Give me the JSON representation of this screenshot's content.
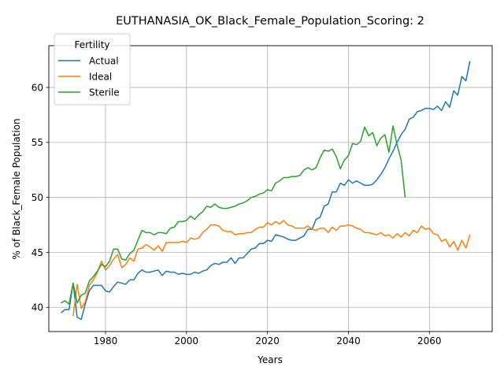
{
  "chart_data": {
    "type": "line",
    "title": "EUTHANASIA_OK_Black_Female_Population_Scoring: 2",
    "xlabel": "Years",
    "ylabel": "% of Black_Female Population",
    "xlim": [
      1966.0,
      2075.5
    ],
    "ylim": [
      37.8,
      63.8
    ],
    "x_ticks": [
      1980,
      2000,
      2020,
      2040,
      2060
    ],
    "y_ticks": [
      40,
      45,
      50,
      55,
      60
    ],
    "grid": true,
    "legend": {
      "title": "Fertility",
      "placement": "top-left"
    },
    "series": [
      {
        "name": "Actual",
        "color": "#1f77b4",
        "x": [
          1969,
          1970,
          1971,
          1972,
          1973,
          1974,
          1975,
          1976,
          1977,
          1978,
          1979,
          1980,
          1981,
          1982,
          1983,
          1984,
          1985,
          1986,
          1987,
          1988,
          1989,
          1990,
          1991,
          1992,
          1993,
          1994,
          1995,
          1996,
          1997,
          1998,
          1999,
          2000,
          2001,
          2002,
          2003,
          2004,
          2005,
          2006,
          2007,
          2008,
          2009,
          2010,
          2011,
          2012,
          2013,
          2014,
          2015,
          2016,
          2017,
          2018,
          2019,
          2020,
          2021,
          2022,
          2023,
          2024,
          2025,
          2026,
          2027,
          2028,
          2029,
          2030,
          2031,
          2032,
          2033,
          2034,
          2035,
          2036,
          2037,
          2038,
          2039,
          2040,
          2041,
          2042,
          2043,
          2044,
          2045,
          2046,
          2047,
          2048,
          2049,
          2050,
          2051,
          2052,
          2053,
          2054,
          2055,
          2056,
          2057,
          2058,
          2059,
          2060,
          2061,
          2062,
          2063,
          2064,
          2065,
          2066,
          2067,
          2068,
          2069,
          2070
        ],
        "y": [
          39.5,
          39.8,
          39.8,
          42.2,
          39.1,
          38.9,
          40.3,
          41.5,
          42.0,
          42.0,
          42.0,
          41.5,
          41.4,
          41.9,
          42.3,
          42.2,
          42.1,
          42.5,
          42.5,
          43.1,
          43.4,
          43.2,
          43.2,
          43.3,
          43.4,
          42.9,
          43.3,
          43.2,
          43.2,
          43.0,
          43.1,
          43.0,
          43.0,
          43.2,
          43.1,
          43.3,
          43.4,
          43.8,
          44.0,
          43.9,
          44.1,
          44.1,
          44.5,
          44.0,
          44.5,
          44.5,
          44.9,
          45.3,
          45.4,
          45.8,
          45.8,
          46.1,
          46.0,
          46.6,
          46.5,
          46.4,
          46.2,
          46.1,
          46.1,
          46.3,
          46.5,
          47.1,
          47.1,
          48.0,
          48.2,
          49.2,
          49.4,
          50.5,
          50.5,
          51.3,
          51.1,
          51.6,
          51.3,
          51.5,
          51.3,
          51.1,
          51.1,
          51.2,
          51.6,
          52.1,
          52.7,
          53.5,
          54.2,
          55.0,
          55.7,
          56.2,
          57.1,
          57.3,
          57.8,
          57.9,
          58.1,
          58.1,
          58.0,
          58.3,
          57.9,
          58.7,
          58.2,
          59.7,
          59.3,
          61.0,
          60.6,
          62.4
        ]
      },
      {
        "name": "Ideal",
        "color": "#ff7f0e",
        "x": [
          1972,
          1973,
          1974,
          1975,
          1976,
          1977,
          1978,
          1979,
          1980,
          1981,
          1982,
          1983,
          1984,
          1985,
          1986,
          1987,
          1988,
          1989,
          1990,
          1991,
          1992,
          1993,
          1994,
          1995,
          1996,
          1997,
          1998,
          1999,
          2000,
          2001,
          2002,
          2003,
          2004,
          2005,
          2006,
          2007,
          2008,
          2009,
          2010,
          2011,
          2012,
          2013,
          2014,
          2015,
          2016,
          2017,
          2018,
          2019,
          2020,
          2021,
          2022,
          2023,
          2024,
          2025,
          2026,
          2027,
          2028,
          2029,
          2030,
          2031,
          2032,
          2033,
          2034,
          2035,
          2036,
          2037,
          2038,
          2039,
          2040,
          2041,
          2042,
          2043,
          2044,
          2045,
          2046,
          2047,
          2048,
          2049,
          2050,
          2051,
          2052,
          2053,
          2054,
          2055,
          2056,
          2057,
          2058,
          2059,
          2060,
          2061,
          2062,
          2063,
          2064,
          2065,
          2066,
          2067,
          2068,
          2069,
          2070
        ],
        "y": [
          39.2,
          42.1,
          39.9,
          40.5,
          42.0,
          42.5,
          43.2,
          44.2,
          43.4,
          43.8,
          44.4,
          44.8,
          43.6,
          43.9,
          44.5,
          44.2,
          45.3,
          45.4,
          45.7,
          45.5,
          45.2,
          45.6,
          45.1,
          45.9,
          45.9,
          45.9,
          45.9,
          46.0,
          45.9,
          46.3,
          46.2,
          46.3,
          46.8,
          47.1,
          47.5,
          47.5,
          47.4,
          47.0,
          46.9,
          46.9,
          46.6,
          46.7,
          46.7,
          46.8,
          46.8,
          47.1,
          47.3,
          47.3,
          47.7,
          47.5,
          47.8,
          47.6,
          47.9,
          47.5,
          47.4,
          47.2,
          47.2,
          47.2,
          47.4,
          47.1,
          47.0,
          47.2,
          47.2,
          46.8,
          47.3,
          47.0,
          47.4,
          47.4,
          47.5,
          47.4,
          47.2,
          47.1,
          46.8,
          46.8,
          46.7,
          46.6,
          46.8,
          46.5,
          46.6,
          46.3,
          46.7,
          46.4,
          46.8,
          46.5,
          47.0,
          46.8,
          47.4,
          47.1,
          47.2,
          46.7,
          46.6,
          46.0,
          46.2,
          45.5,
          46.0,
          45.2,
          46.1,
          45.4,
          46.6
        ]
      },
      {
        "name": "Sterile",
        "color": "#2ca02c",
        "x": [
          1969,
          1970,
          1971,
          1972,
          1973,
          1974,
          1975,
          1976,
          1977,
          1978,
          1979,
          1980,
          1981,
          1982,
          1983,
          1984,
          1985,
          1986,
          1987,
          1988,
          1989,
          1990,
          1991,
          1992,
          1993,
          1994,
          1995,
          1996,
          1997,
          1998,
          1999,
          2000,
          2001,
          2002,
          2003,
          2004,
          2005,
          2006,
          2007,
          2008,
          2009,
          2010,
          2011,
          2012,
          2013,
          2014,
          2015,
          2016,
          2017,
          2018,
          2019,
          2020,
          2021,
          2022,
          2023,
          2024,
          2025,
          2026,
          2027,
          2028,
          2029,
          2030,
          2031,
          2032,
          2033,
          2034,
          2035,
          2036,
          2037,
          2038,
          2039,
          2040,
          2041,
          2042,
          2043,
          2044,
          2045,
          2046,
          2047,
          2048,
          2049,
          2050,
          2051,
          2052,
          2053,
          2054
        ],
        "y": [
          40.4,
          40.6,
          40.3,
          42.2,
          40.4,
          41.1,
          41.3,
          42.4,
          42.8,
          43.3,
          43.9,
          43.7,
          44.2,
          45.3,
          45.3,
          44.4,
          44.3,
          44.9,
          45.2,
          46.1,
          47.0,
          46.8,
          46.8,
          46.6,
          46.8,
          46.8,
          46.7,
          47.2,
          47.3,
          47.8,
          47.8,
          47.9,
          48.3,
          48.0,
          48.4,
          48.7,
          49.2,
          49.1,
          49.4,
          49.1,
          49.0,
          49.0,
          49.1,
          49.2,
          49.4,
          49.5,
          49.7,
          50.0,
          50.1,
          50.3,
          50.4,
          50.7,
          50.6,
          51.3,
          51.5,
          51.8,
          51.8,
          51.9,
          51.9,
          52.0,
          52.5,
          52.7,
          52.5,
          52.7,
          53.6,
          54.3,
          54.2,
          54.4,
          53.7,
          52.6,
          53.4,
          53.8,
          54.9,
          54.8,
          55.1,
          56.4,
          55.6,
          55.9,
          54.7,
          55.4,
          55.7,
          54.1,
          56.5,
          54.8,
          53.4,
          50.0
        ]
      }
    ]
  }
}
